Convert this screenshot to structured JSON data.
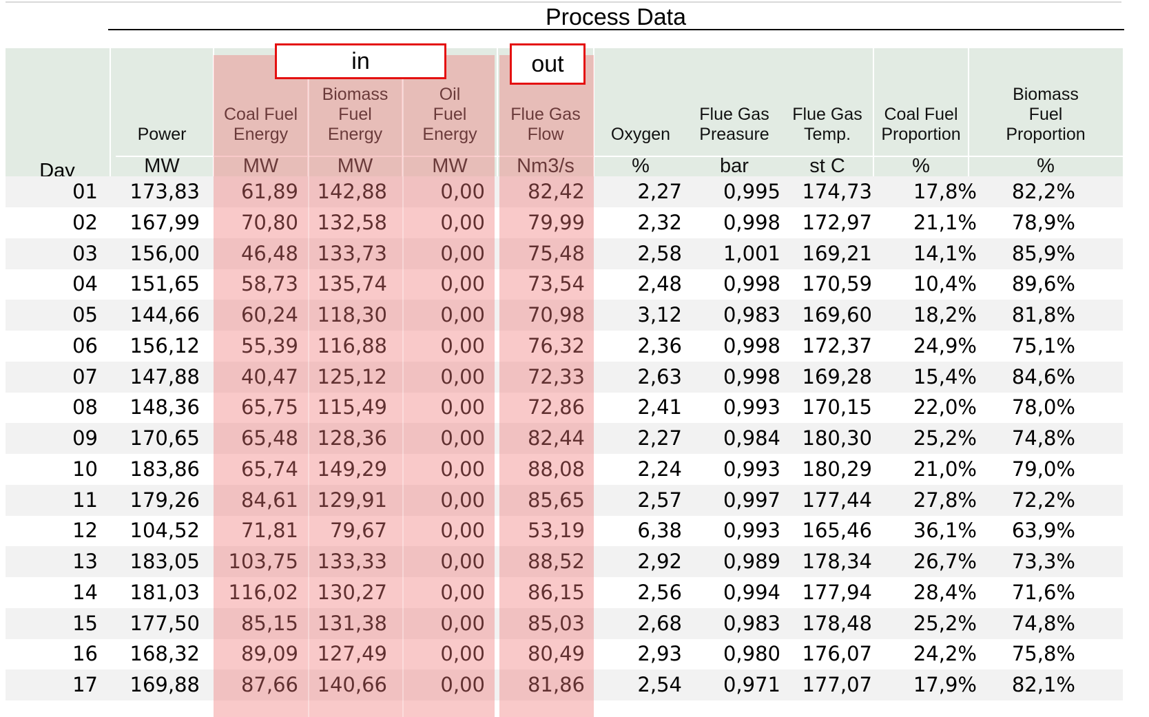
{
  "title": "Process Data",
  "tags": {
    "in": "in",
    "out": "out"
  },
  "day_label": "Day",
  "columns": [
    {
      "key": "power",
      "label": "Power",
      "unit": "MW"
    },
    {
      "key": "coal_energy",
      "label": "Coal Fuel\nEnergy",
      "unit": "MW"
    },
    {
      "key": "biomass_energy",
      "label": "Biomass\nFuel\nEnergy",
      "unit": "MW"
    },
    {
      "key": "oil_energy",
      "label": "Oil\nFuel\nEnergy",
      "unit": "MW"
    },
    {
      "key": "flue_gas_flow",
      "label": "Flue Gas\nFlow",
      "unit": "Nm3/s"
    },
    {
      "key": "oxygen",
      "label": "Oxygen",
      "unit": "%"
    },
    {
      "key": "flue_gas_pressure",
      "label": "Flue Gas\nPreasure",
      "unit": "bar"
    },
    {
      "key": "flue_gas_temp",
      "label": "Flue Gas\nTemp.",
      "unit": "st C"
    },
    {
      "key": "coal_proportion",
      "label": "Coal Fuel\nProportion",
      "unit": "%"
    },
    {
      "key": "biomass_proportion",
      "label": "Biomass\nFuel\nProportion",
      "unit": "%"
    }
  ],
  "rows": [
    [
      "01",
      "173,83",
      "61,89",
      "142,88",
      "0,00",
      "82,42",
      "2,27",
      "0,995",
      "174,73",
      "17,8%",
      "82,2%"
    ],
    [
      "02",
      "167,99",
      "70,80",
      "132,58",
      "0,00",
      "79,99",
      "2,32",
      "0,998",
      "172,97",
      "21,1%",
      "78,9%"
    ],
    [
      "03",
      "156,00",
      "46,48",
      "133,73",
      "0,00",
      "75,48",
      "2,58",
      "1,001",
      "169,21",
      "14,1%",
      "85,9%"
    ],
    [
      "04",
      "151,65",
      "58,73",
      "135,74",
      "0,00",
      "73,54",
      "2,48",
      "0,998",
      "170,59",
      "10,4%",
      "89,6%"
    ],
    [
      "05",
      "144,66",
      "60,24",
      "118,30",
      "0,00",
      "70,98",
      "3,12",
      "0,983",
      "169,60",
      "18,2%",
      "81,8%"
    ],
    [
      "06",
      "156,12",
      "55,39",
      "116,88",
      "0,00",
      "76,32",
      "2,36",
      "0,998",
      "172,37",
      "24,9%",
      "75,1%"
    ],
    [
      "07",
      "147,88",
      "40,47",
      "125,12",
      "0,00",
      "72,33",
      "2,63",
      "0,998",
      "169,28",
      "15,4%",
      "84,6%"
    ],
    [
      "08",
      "148,36",
      "65,75",
      "115,49",
      "0,00",
      "72,86",
      "2,41",
      "0,993",
      "170,15",
      "22,0%",
      "78,0%"
    ],
    [
      "09",
      "170,65",
      "65,48",
      "128,36",
      "0,00",
      "82,44",
      "2,27",
      "0,984",
      "180,30",
      "25,2%",
      "74,8%"
    ],
    [
      "10",
      "183,86",
      "65,74",
      "149,29",
      "0,00",
      "88,08",
      "2,24",
      "0,993",
      "180,29",
      "21,0%",
      "79,0%"
    ],
    [
      "11",
      "179,26",
      "84,61",
      "129,91",
      "0,00",
      "85,65",
      "2,57",
      "0,997",
      "177,44",
      "27,8%",
      "72,2%"
    ],
    [
      "12",
      "104,52",
      "71,81",
      "79,67",
      "0,00",
      "53,19",
      "6,38",
      "0,993",
      "165,46",
      "36,1%",
      "63,9%"
    ],
    [
      "13",
      "183,05",
      "103,75",
      "133,33",
      "0,00",
      "88,52",
      "2,92",
      "0,989",
      "178,34",
      "26,7%",
      "73,3%"
    ],
    [
      "14",
      "181,03",
      "116,02",
      "130,27",
      "0,00",
      "86,15",
      "2,56",
      "0,994",
      "177,94",
      "28,4%",
      "71,6%"
    ],
    [
      "15",
      "177,50",
      "85,15",
      "131,38",
      "0,00",
      "85,03",
      "2,68",
      "0,983",
      "178,48",
      "25,2%",
      "74,8%"
    ],
    [
      "16",
      "168,32",
      "89,09",
      "127,49",
      "0,00",
      "80,49",
      "2,93",
      "0,980",
      "176,07",
      "24,2%",
      "75,8%"
    ],
    [
      "17",
      "169,88",
      "87,66",
      "140,66",
      "0,00",
      "81,86",
      "2,54",
      "0,971",
      "177,07",
      "17,9%",
      "82,1%"
    ]
  ]
}
